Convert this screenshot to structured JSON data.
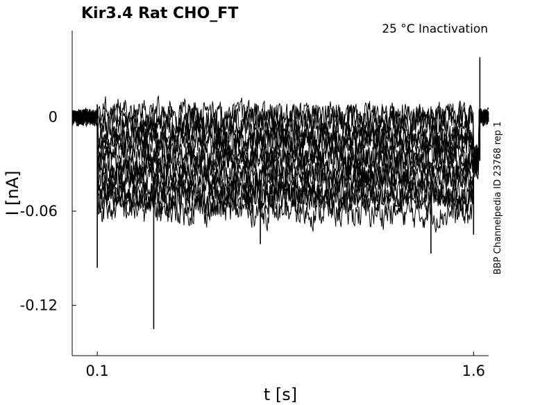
{
  "chart_data": {
    "type": "line",
    "title": "Kir3.4  Rat  CHO_FT",
    "condition": "25 °C  Inactivation",
    "xlabel": "t [s]",
    "ylabel": "I [nA]",
    "side_label": "BBP Channelpedia ID 23768 rep 1",
    "xlim": [
      0.0,
      1.66
    ],
    "ylim": [
      -0.152,
      0.055
    ],
    "x_ticks": [
      0.1,
      1.6
    ],
    "x_tick_labels": [
      "0.1",
      "1.6"
    ],
    "y_ticks": [
      0,
      -0.06,
      -0.12
    ],
    "y_tick_labels": [
      "0",
      "-0.06",
      "-0.12"
    ],
    "grid": false,
    "legend": "none",
    "line_color": "#000000",
    "protocol": {
      "pre_pulse_end": 0.1,
      "test_pulse_end": 1.6,
      "tail_end": 1.61,
      "sweep_count": 16,
      "baseline_value": 0.0,
      "step_levels_approx": [
        0.003,
        -0.002,
        -0.006,
        -0.01,
        -0.014,
        -0.018,
        -0.022,
        -0.026,
        -0.03,
        -0.034,
        -0.038,
        -0.042,
        -0.046,
        -0.05,
        -0.054,
        -0.058
      ],
      "tail_level_approx": -0.028,
      "noise_amplitude_approx": 0.008,
      "spikes": [
        {
          "t": 0.1,
          "i": -0.096
        },
        {
          "t": 0.325,
          "i": -0.135
        },
        {
          "t": 0.75,
          "i": -0.081
        },
        {
          "t": 1.43,
          "i": -0.087
        },
        {
          "t": 1.6,
          "i": -0.075
        },
        {
          "t": 1.625,
          "i": 0.038
        }
      ]
    }
  }
}
